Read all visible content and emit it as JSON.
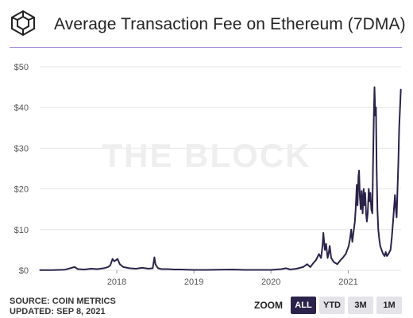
{
  "header": {
    "title": "Average Transaction Fee on Ethereum (7DMA)"
  },
  "footer": {
    "source": "SOURCE: COIN METRICS",
    "updated": "UPDATED: SEP 8, 2021"
  },
  "zoom": {
    "label": "ZOOM",
    "buttons": [
      "ALL",
      "YTD",
      "3M",
      "1M"
    ],
    "active": "ALL"
  },
  "watermark": "THE BLOCK",
  "colors": {
    "line": "#2b2349",
    "accent_divider": "#9b7fd4",
    "active_button": "#2b2349",
    "button": "#e4e4e8",
    "gridline": "#e6e6e6"
  },
  "chart_data": {
    "type": "line",
    "title": "Average Transaction Fee on Ethereum (7DMA)",
    "xlabel": "",
    "ylabel": "",
    "x_tick_labels": [
      "2018",
      "2019",
      "2020",
      "2021"
    ],
    "y_tick_labels": [
      "$0",
      "$10",
      "$20",
      "$30",
      "$40",
      "$50"
    ],
    "ylim": [
      0,
      50
    ],
    "xlim": [
      "2017-01-01",
      "2021-09-08"
    ],
    "grid": "horizontal",
    "series": [
      {
        "points": [
          [
            "2017-01-01",
            0.05
          ],
          [
            "2017-03-01",
            0.06
          ],
          [
            "2017-05-01",
            0.15
          ],
          [
            "2017-06-15",
            0.8
          ],
          [
            "2017-07-01",
            0.3
          ],
          [
            "2017-08-01",
            0.2
          ],
          [
            "2017-09-01",
            0.4
          ],
          [
            "2017-10-01",
            0.3
          ],
          [
            "2017-11-01",
            0.5
          ],
          [
            "2017-11-20",
            0.8
          ],
          [
            "2017-12-01",
            1.2
          ],
          [
            "2017-12-12",
            2.8
          ],
          [
            "2017-12-20",
            2.2
          ],
          [
            "2018-01-05",
            2.8
          ],
          [
            "2018-01-15",
            1.5
          ],
          [
            "2018-02-01",
            0.8
          ],
          [
            "2018-03-01",
            0.5
          ],
          [
            "2018-04-01",
            0.4
          ],
          [
            "2018-05-01",
            0.6
          ],
          [
            "2018-06-01",
            0.4
          ],
          [
            "2018-06-20",
            0.5
          ],
          [
            "2018-06-28",
            3.2
          ],
          [
            "2018-07-03",
            1.5
          ],
          [
            "2018-07-15",
            0.5
          ],
          [
            "2018-08-01",
            0.3
          ],
          [
            "2018-09-01",
            0.3
          ],
          [
            "2018-10-01",
            0.2
          ],
          [
            "2018-11-01",
            0.2
          ],
          [
            "2018-12-01",
            0.15
          ],
          [
            "2019-01-01",
            0.1
          ],
          [
            "2019-03-01",
            0.1
          ],
          [
            "2019-05-01",
            0.15
          ],
          [
            "2019-07-01",
            0.2
          ],
          [
            "2019-09-01",
            0.1
          ],
          [
            "2019-11-01",
            0.1
          ],
          [
            "2020-01-01",
            0.1
          ],
          [
            "2020-02-20",
            0.3
          ],
          [
            "2020-03-12",
            0.5
          ],
          [
            "2020-04-01",
            0.2
          ],
          [
            "2020-05-01",
            0.4
          ],
          [
            "2020-06-01",
            0.8
          ],
          [
            "2020-06-20",
            1.5
          ],
          [
            "2020-07-05",
            0.8
          ],
          [
            "2020-07-20",
            1.8
          ],
          [
            "2020-08-01",
            2.5
          ],
          [
            "2020-08-15",
            4.0
          ],
          [
            "2020-08-25",
            3.0
          ],
          [
            "2020-09-01",
            6.0
          ],
          [
            "2020-09-05",
            9.2
          ],
          [
            "2020-09-12",
            5.0
          ],
          [
            "2020-09-18",
            6.5
          ],
          [
            "2020-09-25",
            3.0
          ],
          [
            "2020-10-01",
            4.5
          ],
          [
            "2020-10-05",
            6.0
          ],
          [
            "2020-10-12",
            3.0
          ],
          [
            "2020-10-25",
            2.0
          ],
          [
            "2020-11-10",
            1.5
          ],
          [
            "2020-11-25",
            2.5
          ],
          [
            "2020-12-05",
            3.0
          ],
          [
            "2020-12-20",
            4.0
          ],
          [
            "2021-01-03",
            6.0
          ],
          [
            "2021-01-10",
            8.0
          ],
          [
            "2021-01-15",
            10.0
          ],
          [
            "2021-01-20",
            7.0
          ],
          [
            "2021-01-25",
            9.0
          ],
          [
            "2021-02-01",
            12.0
          ],
          [
            "2021-02-05",
            15.0
          ],
          [
            "2021-02-10",
            21.0
          ],
          [
            "2021-02-14",
            16.0
          ],
          [
            "2021-02-18",
            23.0
          ],
          [
            "2021-02-21",
            24.5
          ],
          [
            "2021-02-25",
            18.0
          ],
          [
            "2021-03-01",
            15.0
          ],
          [
            "2021-03-05",
            19.5
          ],
          [
            "2021-03-10",
            14.0
          ],
          [
            "2021-03-15",
            20.0
          ],
          [
            "2021-03-18",
            16.0
          ],
          [
            "2021-03-22",
            19.0
          ],
          [
            "2021-03-26",
            14.0
          ],
          [
            "2021-03-30",
            12.0
          ],
          [
            "2021-04-03",
            14.0
          ],
          [
            "2021-04-08",
            20.0
          ],
          [
            "2021-04-12",
            17.0
          ],
          [
            "2021-04-16",
            19.0
          ],
          [
            "2021-04-20",
            15.0
          ],
          [
            "2021-04-25",
            14.0
          ],
          [
            "2021-04-28",
            25.0
          ],
          [
            "2021-05-02",
            38.0
          ],
          [
            "2021-05-05",
            45.0
          ],
          [
            "2021-05-09",
            38.0
          ],
          [
            "2021-05-12",
            40.0
          ],
          [
            "2021-05-15",
            25.0
          ],
          [
            "2021-05-19",
            15.0
          ],
          [
            "2021-05-23",
            10.0
          ],
          [
            "2021-05-27",
            8.0
          ],
          [
            "2021-06-01",
            6.0
          ],
          [
            "2021-06-08",
            5.0
          ],
          [
            "2021-06-15",
            4.0
          ],
          [
            "2021-06-22",
            3.5
          ],
          [
            "2021-06-27",
            4.5
          ],
          [
            "2021-07-03",
            3.5
          ],
          [
            "2021-07-10",
            4.0
          ],
          [
            "2021-07-20",
            5.0
          ],
          [
            "2021-07-26",
            8.0
          ],
          [
            "2021-08-01",
            12.0
          ],
          [
            "2021-08-05",
            15.0
          ],
          [
            "2021-08-10",
            18.5
          ],
          [
            "2021-08-14",
            15.0
          ],
          [
            "2021-08-18",
            13.0
          ],
          [
            "2021-08-22",
            20.0
          ],
          [
            "2021-08-26",
            26.0
          ],
          [
            "2021-08-30",
            35.0
          ],
          [
            "2021-09-03",
            40.0
          ],
          [
            "2021-09-07",
            44.5
          ]
        ]
      }
    ]
  }
}
